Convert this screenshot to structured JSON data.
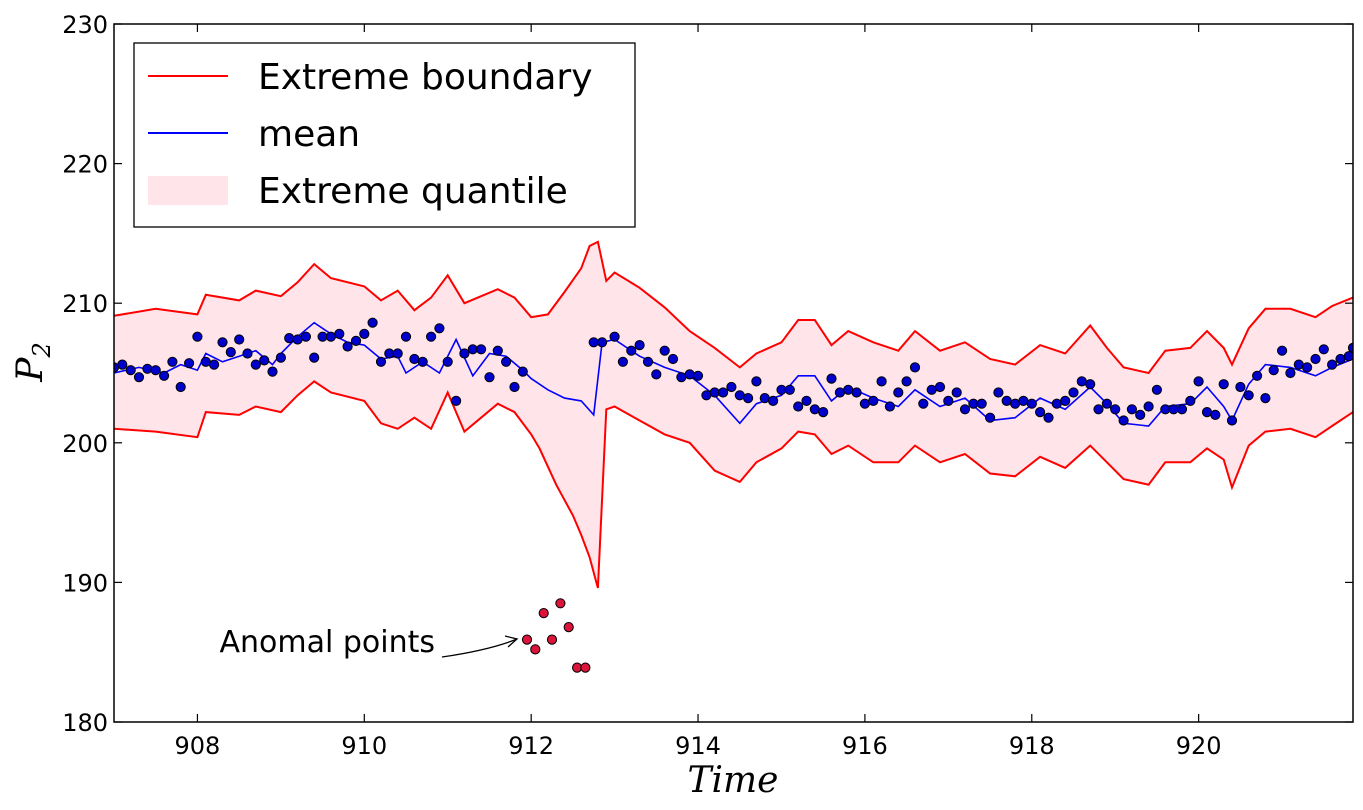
{
  "chart_data": {
    "type": "line",
    "title": "",
    "xlabel": "Time",
    "ylabel_main": "P",
    "ylabel_sub": "2",
    "xlim": [
      907.0,
      921.85
    ],
    "ylim": [
      180,
      230
    ],
    "xticks": [
      908,
      910,
      912,
      914,
      916,
      918,
      920
    ],
    "yticks": [
      180,
      190,
      200,
      210,
      220,
      230
    ],
    "grid": false,
    "legend_position": "top-left",
    "colors": {
      "boundary": "#ff0000",
      "mean": "#0000ff",
      "band_fill": "#ffe4ea",
      "observed": "#0000cc",
      "anomaly": "#dc143c",
      "axes": "#000000"
    },
    "legend": [
      {
        "label": "Extreme boundary",
        "kind": "line",
        "color": "#ff0000"
      },
      {
        "label": "mean",
        "kind": "line",
        "color": "#0000ff"
      },
      {
        "label": "Extreme quantile",
        "kind": "patch",
        "color": "#ffe4ea"
      }
    ],
    "annotation": {
      "text": "Anomal points",
      "target_x": 911.95,
      "target_y": 185.9
    },
    "upper_boundary": [
      [
        907.0,
        209.1
      ],
      [
        907.5,
        209.6
      ],
      [
        908.0,
        209.2
      ],
      [
        908.1,
        210.6
      ],
      [
        908.5,
        210.2
      ],
      [
        908.7,
        210.9
      ],
      [
        909.0,
        210.5
      ],
      [
        909.2,
        211.5
      ],
      [
        909.4,
        212.8
      ],
      [
        909.6,
        211.8
      ],
      [
        910.0,
        211.2
      ],
      [
        910.2,
        210.2
      ],
      [
        910.4,
        210.9
      ],
      [
        910.6,
        209.5
      ],
      [
        910.8,
        210.4
      ],
      [
        911.0,
        212.0
      ],
      [
        911.2,
        210.0
      ],
      [
        911.4,
        210.5
      ],
      [
        911.6,
        211.0
      ],
      [
        911.8,
        210.4
      ],
      [
        912.0,
        209.0
      ],
      [
        912.2,
        209.2
      ],
      [
        912.4,
        210.8
      ],
      [
        912.6,
        212.5
      ],
      [
        912.7,
        214.1
      ],
      [
        912.8,
        214.4
      ],
      [
        912.9,
        211.6
      ],
      [
        913.0,
        212.2
      ],
      [
        913.3,
        211.1
      ],
      [
        913.6,
        209.7
      ],
      [
        913.9,
        208.0
      ],
      [
        914.2,
        206.8
      ],
      [
        914.5,
        205.4
      ],
      [
        914.7,
        206.4
      ],
      [
        915.0,
        207.2
      ],
      [
        915.2,
        208.8
      ],
      [
        915.4,
        208.8
      ],
      [
        915.6,
        207.0
      ],
      [
        915.8,
        208.0
      ],
      [
        916.1,
        207.2
      ],
      [
        916.4,
        206.6
      ],
      [
        916.6,
        208.0
      ],
      [
        916.9,
        206.6
      ],
      [
        917.2,
        207.2
      ],
      [
        917.5,
        206.0
      ],
      [
        917.8,
        205.6
      ],
      [
        918.1,
        207.0
      ],
      [
        918.4,
        206.4
      ],
      [
        918.7,
        208.4
      ],
      [
        918.9,
        206.8
      ],
      [
        919.1,
        205.4
      ],
      [
        919.4,
        205.0
      ],
      [
        919.6,
        206.6
      ],
      [
        919.9,
        206.8
      ],
      [
        920.1,
        208.0
      ],
      [
        920.3,
        206.8
      ],
      [
        920.4,
        205.6
      ],
      [
        920.6,
        208.2
      ],
      [
        920.8,
        209.6
      ],
      [
        921.1,
        209.6
      ],
      [
        921.4,
        209.0
      ],
      [
        921.6,
        209.8
      ],
      [
        921.85,
        210.4
      ]
    ],
    "lower_boundary": [
      [
        907.0,
        201.0
      ],
      [
        907.5,
        200.8
      ],
      [
        908.0,
        200.4
      ],
      [
        908.1,
        202.2
      ],
      [
        908.5,
        202.0
      ],
      [
        908.7,
        202.6
      ],
      [
        909.0,
        202.2
      ],
      [
        909.2,
        203.4
      ],
      [
        909.4,
        204.4
      ],
      [
        909.6,
        203.6
      ],
      [
        910.0,
        203.0
      ],
      [
        910.2,
        201.4
      ],
      [
        910.4,
        201.0
      ],
      [
        910.6,
        201.8
      ],
      [
        910.8,
        201.0
      ],
      [
        911.0,
        203.6
      ],
      [
        911.2,
        200.8
      ],
      [
        911.4,
        201.8
      ],
      [
        911.6,
        202.8
      ],
      [
        911.8,
        202.2
      ],
      [
        912.0,
        200.6
      ],
      [
        912.1,
        199.6
      ],
      [
        912.3,
        197.0
      ],
      [
        912.5,
        194.8
      ],
      [
        912.6,
        193.4
      ],
      [
        912.7,
        191.8
      ],
      [
        912.8,
        189.6
      ],
      [
        912.9,
        202.4
      ],
      [
        913.0,
        202.6
      ],
      [
        913.3,
        201.6
      ],
      [
        913.6,
        200.6
      ],
      [
        913.9,
        200.0
      ],
      [
        914.2,
        198.0
      ],
      [
        914.5,
        197.2
      ],
      [
        914.7,
        198.6
      ],
      [
        915.0,
        199.6
      ],
      [
        915.2,
        200.8
      ],
      [
        915.4,
        200.6
      ],
      [
        915.6,
        199.2
      ],
      [
        915.8,
        199.8
      ],
      [
        916.1,
        198.6
      ],
      [
        916.4,
        198.6
      ],
      [
        916.6,
        199.8
      ],
      [
        916.9,
        198.6
      ],
      [
        917.2,
        199.2
      ],
      [
        917.5,
        197.8
      ],
      [
        917.8,
        197.6
      ],
      [
        918.1,
        199.0
      ],
      [
        918.4,
        198.2
      ],
      [
        918.7,
        199.8
      ],
      [
        918.9,
        198.6
      ],
      [
        919.1,
        197.4
      ],
      [
        919.4,
        197.0
      ],
      [
        919.6,
        198.6
      ],
      [
        919.9,
        198.6
      ],
      [
        920.1,
        199.6
      ],
      [
        920.3,
        198.8
      ],
      [
        920.4,
        196.8
      ],
      [
        920.6,
        199.8
      ],
      [
        920.8,
        200.8
      ],
      [
        921.1,
        201.0
      ],
      [
        921.4,
        200.4
      ],
      [
        921.6,
        201.2
      ],
      [
        921.85,
        202.2
      ]
    ],
    "mean": [
      [
        907.0,
        205.0
      ],
      [
        907.3,
        205.4
      ],
      [
        907.6,
        205.0
      ],
      [
        907.8,
        205.6
      ],
      [
        908.0,
        205.2
      ],
      [
        908.1,
        206.4
      ],
      [
        908.3,
        205.8
      ],
      [
        908.5,
        206.2
      ],
      [
        908.7,
        206.6
      ],
      [
        908.9,
        205.6
      ],
      [
        909.0,
        206.4
      ],
      [
        909.2,
        207.6
      ],
      [
        909.4,
        208.6
      ],
      [
        909.6,
        207.8
      ],
      [
        909.8,
        207.2
      ],
      [
        910.0,
        207.0
      ],
      [
        910.2,
        206.0
      ],
      [
        910.4,
        206.2
      ],
      [
        910.5,
        205.0
      ],
      [
        910.7,
        205.8
      ],
      [
        910.9,
        205.0
      ],
      [
        911.1,
        207.4
      ],
      [
        911.3,
        204.8
      ],
      [
        911.5,
        206.4
      ],
      [
        911.7,
        206.2
      ],
      [
        911.9,
        205.2
      ],
      [
        912.0,
        204.6
      ],
      [
        912.2,
        203.8
      ],
      [
        912.4,
        203.2
      ],
      [
        912.6,
        203.0
      ],
      [
        912.75,
        202.0
      ],
      [
        912.85,
        207.2
      ],
      [
        913.0,
        207.4
      ],
      [
        913.3,
        206.2
      ],
      [
        913.6,
        205.4
      ],
      [
        913.9,
        204.8
      ],
      [
        914.2,
        203.4
      ],
      [
        914.5,
        201.4
      ],
      [
        914.7,
        202.8
      ],
      [
        915.0,
        203.4
      ],
      [
        915.2,
        204.8
      ],
      [
        915.4,
        204.8
      ],
      [
        915.6,
        203.0
      ],
      [
        915.8,
        204.0
      ],
      [
        916.1,
        203.2
      ],
      [
        916.4,
        202.6
      ],
      [
        916.6,
        203.8
      ],
      [
        916.9,
        202.6
      ],
      [
        917.2,
        203.2
      ],
      [
        917.5,
        201.6
      ],
      [
        917.8,
        201.8
      ],
      [
        918.1,
        203.2
      ],
      [
        918.4,
        202.4
      ],
      [
        918.7,
        204.0
      ],
      [
        918.9,
        202.8
      ],
      [
        919.1,
        201.4
      ],
      [
        919.4,
        201.2
      ],
      [
        919.6,
        202.6
      ],
      [
        919.9,
        202.8
      ],
      [
        920.1,
        204.0
      ],
      [
        920.3,
        202.6
      ],
      [
        920.4,
        201.6
      ],
      [
        920.6,
        204.2
      ],
      [
        920.8,
        205.6
      ],
      [
        921.1,
        205.4
      ],
      [
        921.4,
        204.8
      ],
      [
        921.6,
        205.4
      ],
      [
        921.85,
        206.0
      ]
    ],
    "observed": [
      [
        907.0,
        205.4
      ],
      [
        907.1,
        205.6
      ],
      [
        907.2,
        205.2
      ],
      [
        907.3,
        204.7
      ],
      [
        907.4,
        205.3
      ],
      [
        907.5,
        205.2
      ],
      [
        907.6,
        204.8
      ],
      [
        907.7,
        205.8
      ],
      [
        907.8,
        204.0
      ],
      [
        907.9,
        205.7
      ],
      [
        908.0,
        207.6
      ],
      [
        908.1,
        205.8
      ],
      [
        908.2,
        205.6
      ],
      [
        908.3,
        207.2
      ],
      [
        908.4,
        206.5
      ],
      [
        908.5,
        207.4
      ],
      [
        908.6,
        206.4
      ],
      [
        908.7,
        205.6
      ],
      [
        908.8,
        205.9
      ],
      [
        908.9,
        205.1
      ],
      [
        909.0,
        206.1
      ],
      [
        909.1,
        207.5
      ],
      [
        909.2,
        207.4
      ],
      [
        909.3,
        207.6
      ],
      [
        909.4,
        206.1
      ],
      [
        909.5,
        207.6
      ],
      [
        909.6,
        207.6
      ],
      [
        909.7,
        207.8
      ],
      [
        909.8,
        206.9
      ],
      [
        909.9,
        207.3
      ],
      [
        910.0,
        207.8
      ],
      [
        910.1,
        208.6
      ],
      [
        910.2,
        205.8
      ],
      [
        910.3,
        206.4
      ],
      [
        910.4,
        206.4
      ],
      [
        910.5,
        207.6
      ],
      [
        910.6,
        206.0
      ],
      [
        910.7,
        205.8
      ],
      [
        910.8,
        207.6
      ],
      [
        910.9,
        208.2
      ],
      [
        911.0,
        205.8
      ],
      [
        911.1,
        203.0
      ],
      [
        911.2,
        206.4
      ],
      [
        911.3,
        206.7
      ],
      [
        911.4,
        206.7
      ],
      [
        911.5,
        204.7
      ],
      [
        911.6,
        206.6
      ],
      [
        911.7,
        205.8
      ],
      [
        911.8,
        204.0
      ],
      [
        911.9,
        205.1
      ],
      [
        912.75,
        207.2
      ],
      [
        912.85,
        207.2
      ],
      [
        913.0,
        207.6
      ],
      [
        913.1,
        205.8
      ],
      [
        913.2,
        206.6
      ],
      [
        913.3,
        207.0
      ],
      [
        913.4,
        205.8
      ],
      [
        913.5,
        204.9
      ],
      [
        913.6,
        206.6
      ],
      [
        913.7,
        206.0
      ],
      [
        913.8,
        204.7
      ],
      [
        913.9,
        204.9
      ],
      [
        914.0,
        204.8
      ],
      [
        914.1,
        203.4
      ],
      [
        914.2,
        203.6
      ],
      [
        914.3,
        203.6
      ],
      [
        914.4,
        204.0
      ],
      [
        914.5,
        203.4
      ],
      [
        914.6,
        203.2
      ],
      [
        914.7,
        204.4
      ],
      [
        914.8,
        203.2
      ],
      [
        914.9,
        203.0
      ],
      [
        915.0,
        203.8
      ],
      [
        915.1,
        203.8
      ],
      [
        915.2,
        202.6
      ],
      [
        915.3,
        203.0
      ],
      [
        915.4,
        202.4
      ],
      [
        915.5,
        202.2
      ],
      [
        915.6,
        204.6
      ],
      [
        915.7,
        203.6
      ],
      [
        915.8,
        203.8
      ],
      [
        915.9,
        203.6
      ],
      [
        916.0,
        202.8
      ],
      [
        916.1,
        203.0
      ],
      [
        916.2,
        204.4
      ],
      [
        916.3,
        202.6
      ],
      [
        916.4,
        203.6
      ],
      [
        916.5,
        204.4
      ],
      [
        916.6,
        205.4
      ],
      [
        916.7,
        202.8
      ],
      [
        916.8,
        203.8
      ],
      [
        916.9,
        204.0
      ],
      [
        917.0,
        203.0
      ],
      [
        917.1,
        203.6
      ],
      [
        917.2,
        202.4
      ],
      [
        917.3,
        202.8
      ],
      [
        917.4,
        202.8
      ],
      [
        917.5,
        201.8
      ],
      [
        917.6,
        203.6
      ],
      [
        917.7,
        203.0
      ],
      [
        917.8,
        202.8
      ],
      [
        917.9,
        203.0
      ],
      [
        918.0,
        202.8
      ],
      [
        918.1,
        202.2
      ],
      [
        918.2,
        201.8
      ],
      [
        918.3,
        202.8
      ],
      [
        918.4,
        203.0
      ],
      [
        918.5,
        203.6
      ],
      [
        918.6,
        204.4
      ],
      [
        918.7,
        204.2
      ],
      [
        918.8,
        202.4
      ],
      [
        918.9,
        202.8
      ],
      [
        919.0,
        202.4
      ],
      [
        919.1,
        201.6
      ],
      [
        919.2,
        202.4
      ],
      [
        919.3,
        202.0
      ],
      [
        919.4,
        202.6
      ],
      [
        919.5,
        203.8
      ],
      [
        919.6,
        202.4
      ],
      [
        919.7,
        202.4
      ],
      [
        919.8,
        202.4
      ],
      [
        919.9,
        203.0
      ],
      [
        920.0,
        204.4
      ],
      [
        920.1,
        202.2
      ],
      [
        920.2,
        202.0
      ],
      [
        920.3,
        204.2
      ],
      [
        920.4,
        201.6
      ],
      [
        920.5,
        204.0
      ],
      [
        920.6,
        203.4
      ],
      [
        920.7,
        204.8
      ],
      [
        920.8,
        203.2
      ],
      [
        920.9,
        205.2
      ],
      [
        921.0,
        206.6
      ],
      [
        921.1,
        205.0
      ],
      [
        921.2,
        205.6
      ],
      [
        921.3,
        205.4
      ],
      [
        921.4,
        206.0
      ],
      [
        921.5,
        206.7
      ],
      [
        921.6,
        205.6
      ],
      [
        921.7,
        206.0
      ],
      [
        921.8,
        206.2
      ],
      [
        921.85,
        206.8
      ]
    ],
    "anomalies": [
      [
        911.95,
        185.9
      ],
      [
        912.05,
        185.2
      ],
      [
        912.15,
        187.8
      ],
      [
        912.25,
        185.9
      ],
      [
        912.35,
        188.5
      ],
      [
        912.45,
        186.8
      ],
      [
        912.55,
        183.9
      ],
      [
        912.65,
        183.9
      ]
    ]
  }
}
